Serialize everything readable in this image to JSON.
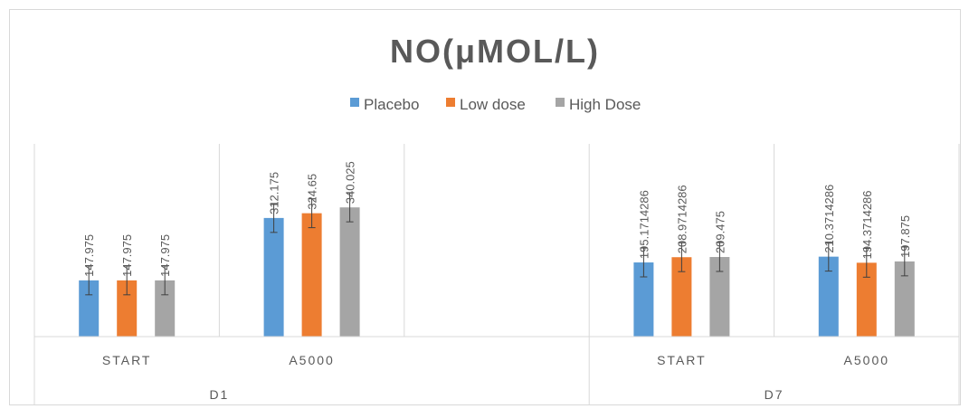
{
  "chart_data": {
    "type": "bar",
    "title": "NO(μMOL/L)",
    "legend_position": "top",
    "grid": false,
    "groups": [
      {
        "label": "D1",
        "categories": [
          "START",
          "A5000"
        ]
      },
      {
        "label": "D7",
        "categories": [
          "START",
          "A5000"
        ]
      }
    ],
    "categories": [
      "START",
      "A5000",
      "",
      "START",
      "A5000"
    ],
    "series": [
      {
        "name": "Placebo",
        "color": "#5B9BD5",
        "values": [
          147.975,
          312.175,
          null,
          195.1714286,
          210.3714286
        ],
        "labels": [
          "147.975",
          "312.175",
          "",
          "195.1714286",
          "210.3714286"
        ]
      },
      {
        "name": "Low dose",
        "color": "#ED7D31",
        "values": [
          147.975,
          324.65,
          null,
          208.9714286,
          194.3714286
        ],
        "labels": [
          "147.975",
          "324.65",
          "",
          "208.9714286",
          "194.3714286"
        ]
      },
      {
        "name": "High Dose",
        "color": "#A5A5A5",
        "values": [
          147.975,
          340.025,
          null,
          209.475,
          197.875
        ],
        "labels": [
          "147.975",
          "340.025",
          "",
          "209.475",
          "197.875"
        ]
      }
    ],
    "ylim": [
      0,
      550
    ],
    "error_bar": 38
  }
}
